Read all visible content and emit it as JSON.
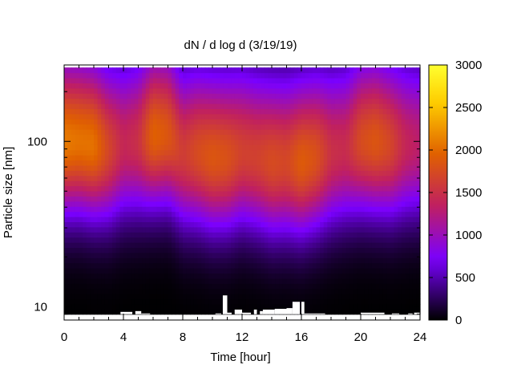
{
  "chart_data": {
    "type": "heatmap",
    "title": "dN / d log d (3/19/19)",
    "xlabel": "Time [hour]",
    "ylabel": "Particle size [nm]",
    "xlim": [
      0,
      24
    ],
    "ylim": [
      8.3,
      290
    ],
    "yscale": "log",
    "x_ticks": [
      0,
      4,
      8,
      12,
      16,
      20,
      24
    ],
    "x_tick_labels": [
      "0",
      "4",
      "8",
      "12",
      "16",
      "20",
      "24"
    ],
    "y_tick_labels": [
      {
        "value": 10,
        "label": "10"
      },
      {
        "value": 100,
        "label": "100"
      }
    ],
    "colorbar": {
      "min": 0,
      "max": 3000,
      "ticks": [
        0,
        500,
        1000,
        1500,
        2000,
        2500,
        3000
      ],
      "tick_labels": [
        "0",
        "500",
        "1000",
        "1500",
        "2000",
        "2500",
        "3000"
      ],
      "colormap": [
        "#000000",
        "#7a00ff",
        "#c02060",
        "#e06000",
        "#ffd000",
        "#ffff30"
      ]
    },
    "data_extent": {
      "x": [
        0,
        24
      ],
      "size_nm": [
        9,
        280
      ]
    },
    "series": [
      {
        "values_note_hours": [
          0,
          1,
          2,
          3,
          4,
          5,
          6,
          7,
          8,
          9,
          10,
          11,
          12,
          13,
          14,
          15,
          16,
          17,
          18,
          19,
          20,
          21,
          22,
          23,
          24
        ],
        "peak_dNdlogd": [
          2100,
          2050,
          2050,
          1700,
          1400,
          1500,
          1950,
          1850,
          1600,
          1750,
          1850,
          1800,
          1650,
          1650,
          1750,
          1700,
          1900,
          1800,
          1500,
          1450,
          1750,
          1850,
          1700,
          1400,
          1300
        ],
        "peak_diameter_nm": [
          100,
          100,
          95,
          90,
          95,
          100,
          110,
          110,
          85,
          85,
          80,
          80,
          85,
          80,
          75,
          75,
          75,
          80,
          85,
          90,
          100,
          100,
          95,
          95,
          95
        ]
      }
    ],
    "missing_bins_hours": [
      [
        3.8,
        4.6,
        9.3
      ],
      [
        4.8,
        5.2,
        9.4
      ],
      [
        5.2,
        5.8,
        9.1
      ],
      [
        9.5,
        10.2,
        9.0
      ],
      [
        10.2,
        10.6,
        9.1
      ],
      [
        10.7,
        11.0,
        11.7
      ],
      [
        11.0,
        11.3,
        9.2
      ],
      [
        11.5,
        12.0,
        9.6
      ],
      [
        12.0,
        12.6,
        9.2
      ],
      [
        12.8,
        13.0,
        9.6
      ],
      [
        13.2,
        13.4,
        9.4
      ],
      [
        13.4,
        14.2,
        9.6
      ],
      [
        14.2,
        15.0,
        9.7
      ],
      [
        15.0,
        15.4,
        9.8
      ],
      [
        15.4,
        15.9,
        10.7
      ],
      [
        16.0,
        16.2,
        10.7
      ],
      [
        16.2,
        17.6,
        9.1
      ],
      [
        20.0,
        21.6,
        9.2
      ],
      [
        22.1,
        22.6,
        9.1
      ],
      [
        23.2,
        23.5,
        9.1
      ],
      [
        23.6,
        24.0,
        9.2
      ]
    ]
  }
}
